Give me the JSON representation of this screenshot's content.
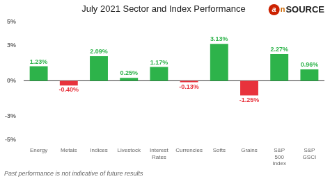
{
  "chart_data": {
    "type": "bar",
    "title": "July 2021 Sector and Index Performance",
    "categories": [
      "Energy",
      "Metals",
      "Indices",
      "Livestock",
      "Interest Rates",
      "Currencies",
      "Softs",
      "Grains",
      "S&P 500 Index",
      "S&P GSCI"
    ],
    "values": [
      1.23,
      -0.4,
      2.09,
      0.25,
      1.17,
      -0.13,
      3.13,
      -1.25,
      2.27,
      0.96
    ],
    "value_labels": [
      "1.23%",
      "-0.40%",
      "2.09%",
      "0.25%",
      "1.17%",
      "-0.13%",
      "3.13%",
      "-1.25%",
      "2.27%",
      "0.96%"
    ],
    "data_labels": true,
    "colors": [
      "#2db34a",
      "#e8323c",
      "#2db34a",
      "#2db34a",
      "#2db34a",
      "#e8323c",
      "#2db34a",
      "#e8323c",
      "#2db34a",
      "#2db34a"
    ],
    "ylim": [
      -5,
      5
    ],
    "yticks": [
      {
        "value": -5,
        "label": "-5%"
      },
      {
        "value": -3,
        "label": "-3%"
      },
      {
        "value": 0,
        "label": "0%"
      },
      {
        "value": 3,
        "label": "3%"
      },
      {
        "value": 5,
        "label": "5%"
      }
    ],
    "grid": false,
    "annotations": [
      "Past performance is not indicative of future results",
      "a",
      "n",
      "SOURCE"
    ]
  }
}
